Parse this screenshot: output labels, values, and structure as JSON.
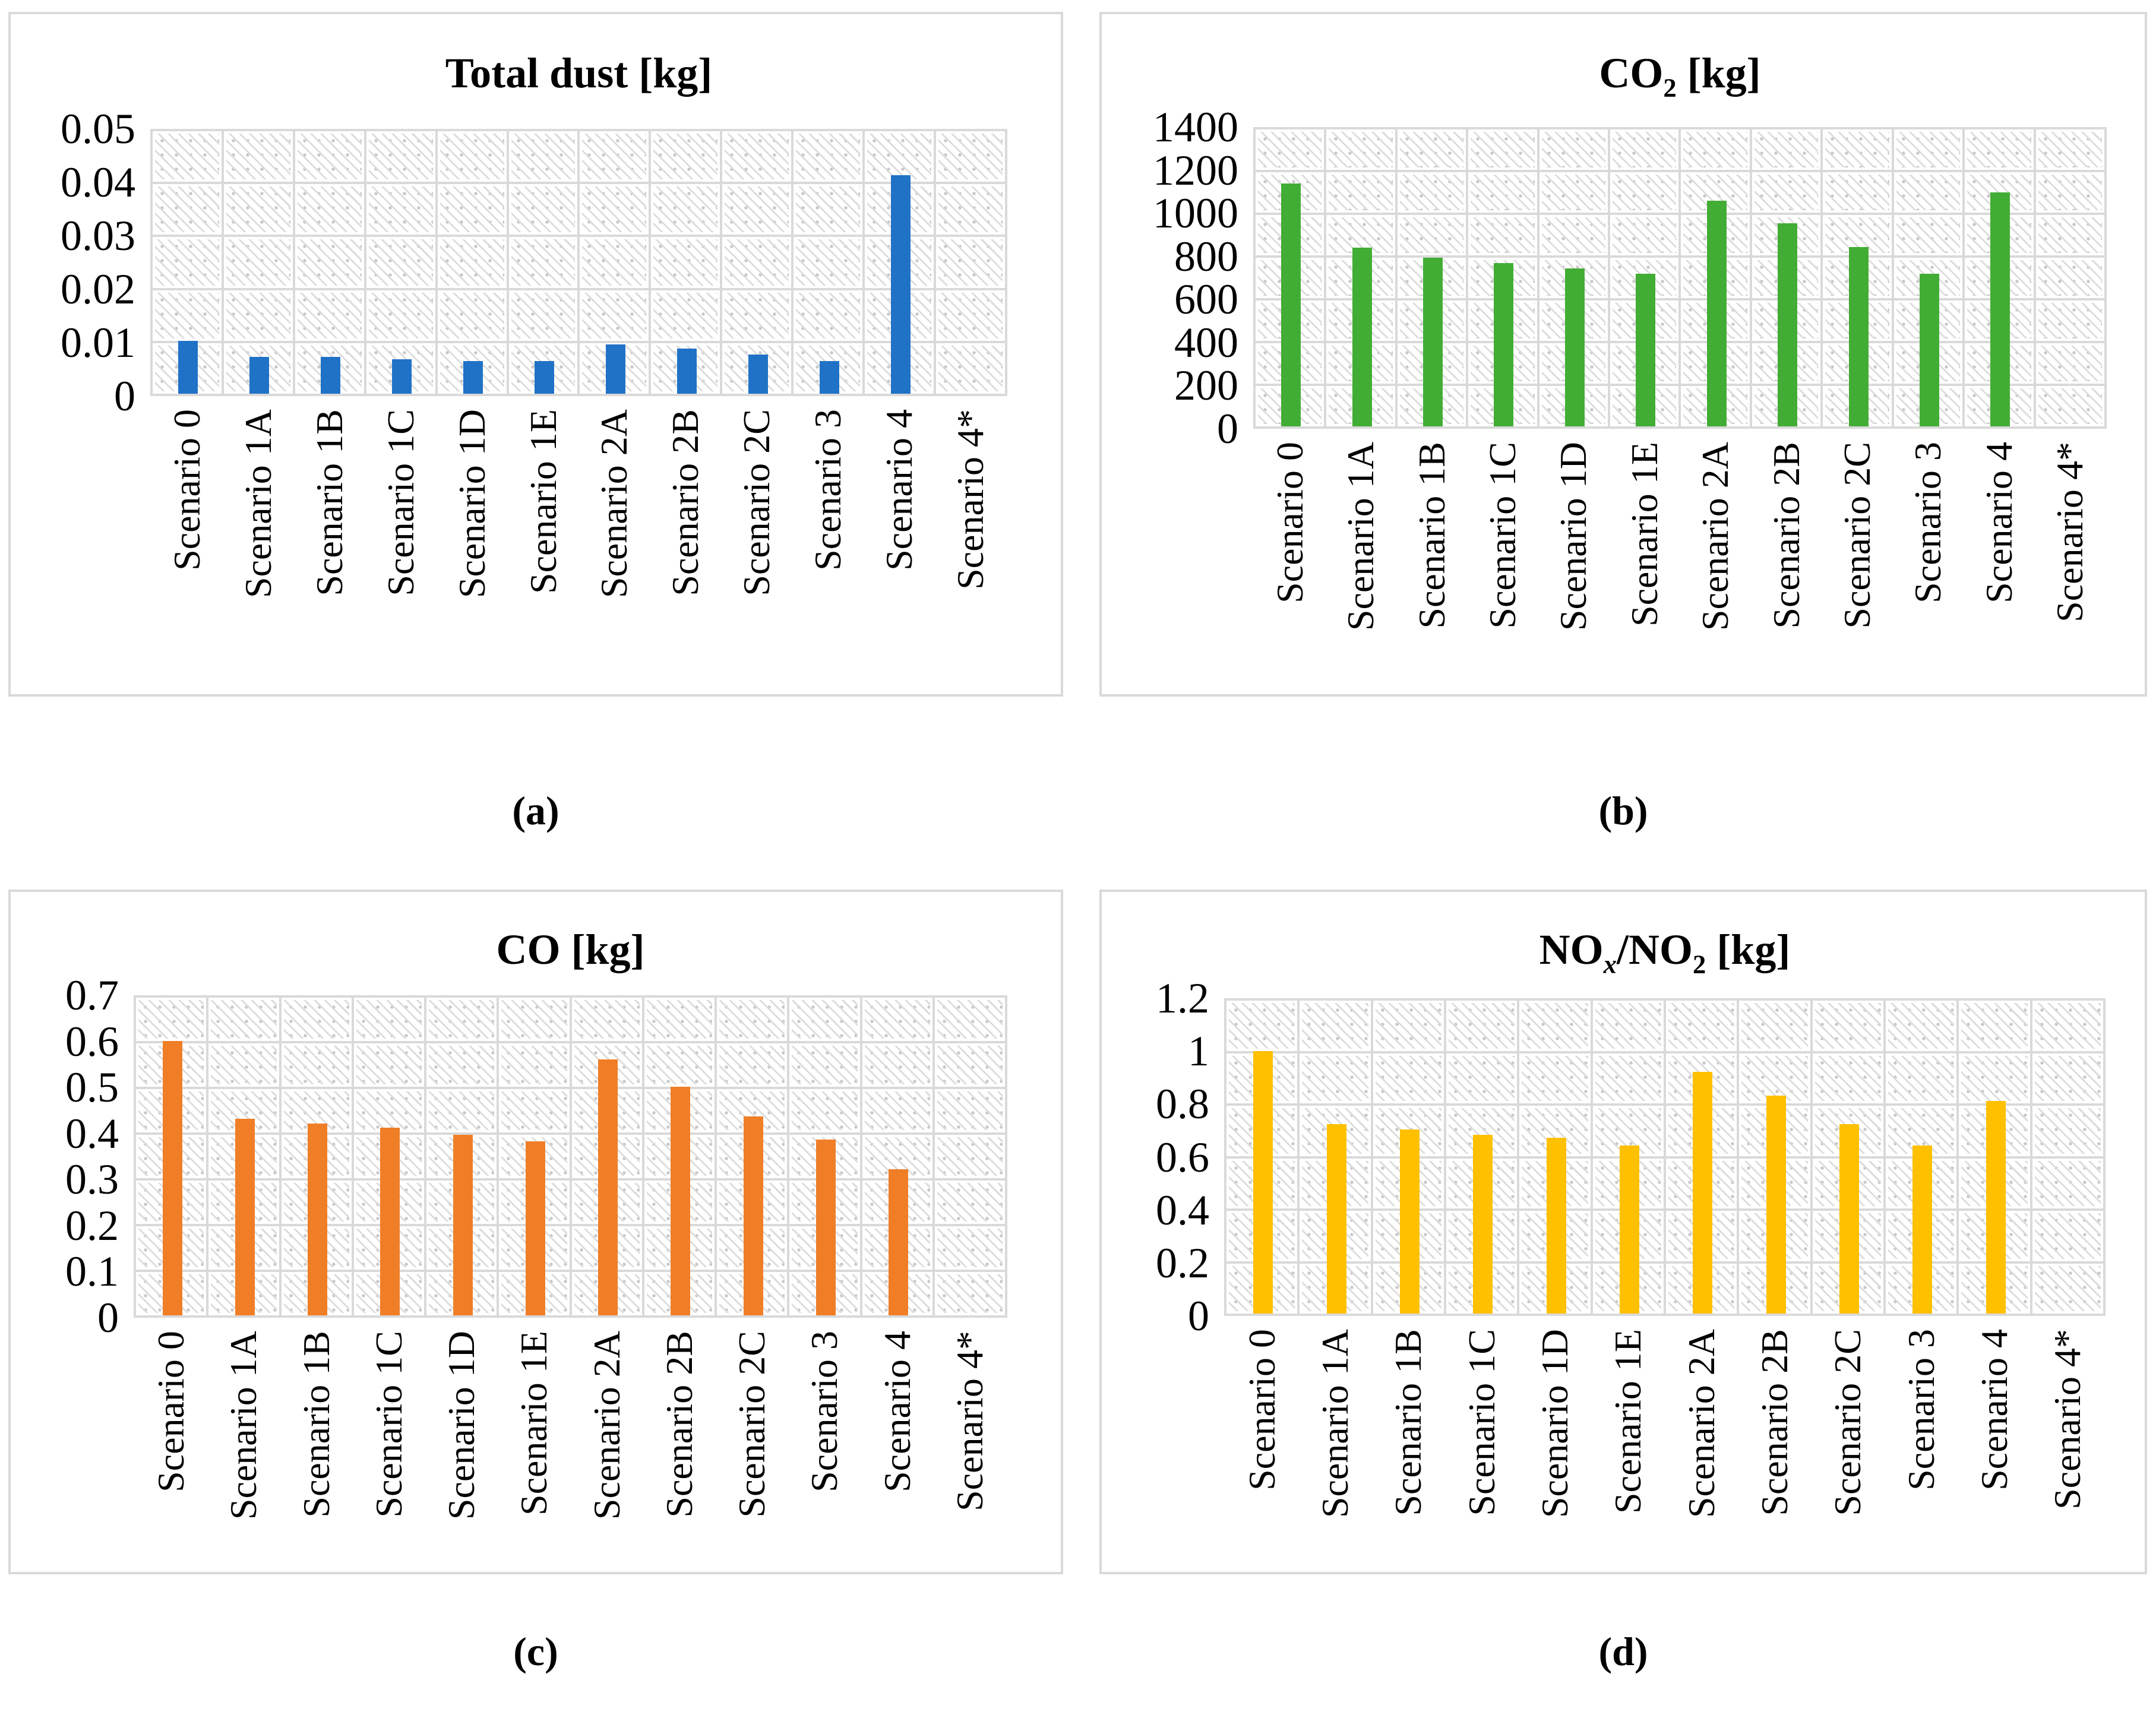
{
  "captions": [
    "(a)",
    "(b)",
    "(c)",
    "(d)"
  ],
  "colors": {
    "grid": "#d9d9d9",
    "hatch_line": "#dcdcdc",
    "hatch_dot": "#c9c9c9",
    "panel_border": "#d9d9d9",
    "text": "#000000",
    "bar_blue": "#2072c6",
    "bar_green": "#42ad34",
    "bar_orange": "#f07e26",
    "bar_yellow": "#ffc000"
  },
  "chart_data": [
    {
      "type": "bar",
      "panel": "a",
      "title": "Total dust [kg]",
      "title_segments": [
        {
          "t": "Total dust [kg]"
        }
      ],
      "categories": [
        "Scenario 0",
        "Scenario 1A",
        "Scenario 1B",
        "Scenario 1C",
        "Scenario 1D",
        "Scenario 1E",
        "Scenario 2A",
        "Scenario 2B",
        "Scenario 2C",
        "Scenario 3",
        "Scenario 4",
        "Scenario 4*"
      ],
      "values": [
        0.01,
        0.007,
        0.007,
        0.0065,
        0.0062,
        0.0062,
        0.0093,
        0.0085,
        0.0074,
        0.0062,
        0.0413,
        0
      ],
      "xlabel": "",
      "ylabel": "",
      "ylim": [
        0,
        0.05
      ],
      "ytick_labels": [
        "0.05",
        "0.04",
        "0.03",
        "0.02",
        "0.01",
        "0"
      ],
      "gridline_step": 0.01,
      "grid": true,
      "legend": "none",
      "bar_color": "#2072c6",
      "plot_fill": "light diagonal hatch pattern"
    },
    {
      "type": "bar",
      "panel": "b",
      "title": "CO2 [kg]",
      "title_segments": [
        {
          "t": "CO"
        },
        {
          "s": "2"
        },
        {
          "t": " [kg]"
        }
      ],
      "categories": [
        "Scenario 0",
        "Scenario 1A",
        "Scenario 1B",
        "Scenario 1C",
        "Scenario 1D",
        "Scenario 1E",
        "Scenario 2A",
        "Scenario 2B",
        "Scenario 2C",
        "Scenario 3",
        "Scenario 4",
        "Scenario 4*"
      ],
      "values": [
        1135,
        835,
        790,
        765,
        740,
        715,
        1055,
        950,
        840,
        715,
        1095,
        0
      ],
      "xlabel": "",
      "ylabel": "",
      "ylim": [
        0,
        1400
      ],
      "ytick_labels": [
        "1400",
        "1200",
        "1000",
        "800",
        "600",
        "400",
        "200",
        "0"
      ],
      "gridline_step": 200,
      "grid": true,
      "legend": "none",
      "bar_color": "#42ad34",
      "plot_fill": "light diagonal hatch pattern"
    },
    {
      "type": "bar",
      "panel": "c",
      "title": "CO [kg]",
      "title_segments": [
        {
          "t": "CO [kg]"
        }
      ],
      "categories": [
        "Scenario 0",
        "Scenario 1A",
        "Scenario 1B",
        "Scenario 1C",
        "Scenario 1D",
        "Scenario 1E",
        "Scenario 2A",
        "Scenario 2B",
        "Scenario 2C",
        "Scenario 3",
        "Scenario 4",
        "Scenario 4*"
      ],
      "values": [
        0.6,
        0.43,
        0.42,
        0.41,
        0.395,
        0.38,
        0.56,
        0.5,
        0.435,
        0.385,
        0.32,
        0
      ],
      "xlabel": "",
      "ylabel": "",
      "ylim": [
        0,
        0.7
      ],
      "ytick_labels": [
        "0.7",
        "0.6",
        "0.5",
        "0.4",
        "0.3",
        "0.2",
        "0.1",
        "0"
      ],
      "gridline_step": 0.1,
      "grid": true,
      "legend": "none",
      "bar_color": "#f07e26",
      "plot_fill": "light diagonal hatch pattern"
    },
    {
      "type": "bar",
      "panel": "d",
      "title": "NOx/NO2 [kg]",
      "title_segments": [
        {
          "t": "NO"
        },
        {
          "s": "x",
          "i": true
        },
        {
          "t": "/NO"
        },
        {
          "s": "2"
        },
        {
          "t": " [kg]"
        }
      ],
      "categories": [
        "Scenario 0",
        "Scenario 1A",
        "Scenario 1B",
        "Scenario 1C",
        "Scenario 1D",
        "Scenario 1E",
        "Scenario 2A",
        "Scenario 2B",
        "Scenario 2C",
        "Scenario 3",
        "Scenario 4",
        "Scenario 4*"
      ],
      "values": [
        1.0,
        0.72,
        0.7,
        0.68,
        0.67,
        0.64,
        0.92,
        0.83,
        0.72,
        0.64,
        0.81,
        0
      ],
      "xlabel": "",
      "ylabel": "",
      "ylim": [
        0,
        1.2
      ],
      "ytick_labels": [
        "1.2",
        "1",
        "0.8",
        "0.6",
        "0.4",
        "0.2",
        "0"
      ],
      "gridline_step": 0.2,
      "grid": true,
      "legend": "none",
      "bar_color": "#ffc000",
      "plot_fill": "light diagonal hatch pattern"
    }
  ]
}
